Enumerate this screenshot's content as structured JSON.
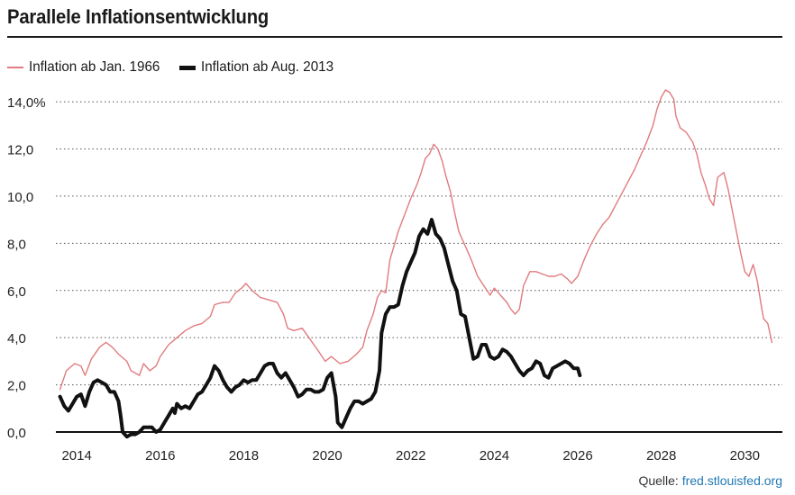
{
  "title": "Parallele Inflationsentwicklung",
  "legend": [
    {
      "label": "Inflation ab Jan. 1966",
      "color": "#e07b7f"
    },
    {
      "label": "Inflation ab Aug. 2013",
      "color": "#111111"
    }
  ],
  "source": {
    "prefix": "Quelle:",
    "link": "fred.stlouisfed.org"
  },
  "chart_data": {
    "type": "line",
    "title": "Parallele Inflationsentwicklung",
    "xlabel": "",
    "ylabel": "",
    "xlim": [
      2013.5,
      2030.9
    ],
    "ylim": [
      0,
      14.5
    ],
    "y_ticks": [
      0,
      2,
      4,
      6,
      8,
      10,
      12,
      14
    ],
    "y_tick_labels": [
      "0,0",
      "2,0",
      "4,0",
      "6,0",
      "8,0",
      "10,0",
      "12,0",
      "14,0%"
    ],
    "x_ticks": [
      2014,
      2016,
      2018,
      2020,
      2022,
      2024,
      2026,
      2028,
      2030
    ],
    "x_tick_labels": [
      "2014",
      "2016",
      "2018",
      "2020",
      "2022",
      "2024",
      "2026",
      "2028",
      "2030"
    ],
    "grid": "horizontal dotted",
    "legend_position": "top-left",
    "series": [
      {
        "name": "Inflation ab Jan. 1966",
        "color": "#e07b7f",
        "points": [
          [
            2013.6,
            1.8
          ],
          [
            2013.75,
            2.6
          ],
          [
            2013.95,
            2.9
          ],
          [
            2014.1,
            2.8
          ],
          [
            2014.2,
            2.4
          ],
          [
            2014.35,
            3.1
          ],
          [
            2014.55,
            3.6
          ],
          [
            2014.7,
            3.8
          ],
          [
            2014.85,
            3.6
          ],
          [
            2015.0,
            3.3
          ],
          [
            2015.2,
            3.0
          ],
          [
            2015.3,
            2.6
          ],
          [
            2015.5,
            2.4
          ],
          [
            2015.6,
            2.9
          ],
          [
            2015.75,
            2.6
          ],
          [
            2015.9,
            2.8
          ],
          [
            2016.0,
            3.2
          ],
          [
            2016.2,
            3.7
          ],
          [
            2016.4,
            4.0
          ],
          [
            2016.6,
            4.3
          ],
          [
            2016.8,
            4.5
          ],
          [
            2017.0,
            4.6
          ],
          [
            2017.2,
            4.9
          ],
          [
            2017.3,
            5.4
          ],
          [
            2017.5,
            5.5
          ],
          [
            2017.65,
            5.5
          ],
          [
            2017.8,
            5.9
          ],
          [
            2017.95,
            6.1
          ],
          [
            2018.05,
            6.3
          ],
          [
            2018.2,
            6.0
          ],
          [
            2018.4,
            5.7
          ],
          [
            2018.6,
            5.6
          ],
          [
            2018.8,
            5.5
          ],
          [
            2018.95,
            5.0
          ],
          [
            2019.05,
            4.4
          ],
          [
            2019.2,
            4.3
          ],
          [
            2019.4,
            4.4
          ],
          [
            2019.6,
            3.9
          ],
          [
            2019.8,
            3.4
          ],
          [
            2019.95,
            3.0
          ],
          [
            2020.1,
            3.2
          ],
          [
            2020.3,
            2.9
          ],
          [
            2020.5,
            3.0
          ],
          [
            2020.7,
            3.3
          ],
          [
            2020.85,
            3.6
          ],
          [
            2020.95,
            4.3
          ],
          [
            2021.1,
            5.0
          ],
          [
            2021.2,
            5.7
          ],
          [
            2021.3,
            6.0
          ],
          [
            2021.4,
            5.9
          ],
          [
            2021.5,
            7.3
          ],
          [
            2021.6,
            7.9
          ],
          [
            2021.7,
            8.5
          ],
          [
            2021.85,
            9.2
          ],
          [
            2022.0,
            9.9
          ],
          [
            2022.15,
            10.5
          ],
          [
            2022.25,
            11.0
          ],
          [
            2022.35,
            11.6
          ],
          [
            2022.45,
            11.8
          ],
          [
            2022.55,
            12.2
          ],
          [
            2022.65,
            12.0
          ],
          [
            2022.75,
            11.5
          ],
          [
            2022.85,
            10.8
          ],
          [
            2022.95,
            10.2
          ],
          [
            2023.05,
            9.3
          ],
          [
            2023.15,
            8.5
          ],
          [
            2023.3,
            7.9
          ],
          [
            2023.45,
            7.3
          ],
          [
            2023.6,
            6.6
          ],
          [
            2023.75,
            6.2
          ],
          [
            2023.9,
            5.8
          ],
          [
            2024.0,
            6.1
          ],
          [
            2024.1,
            5.9
          ],
          [
            2024.2,
            5.7
          ],
          [
            2024.3,
            5.5
          ],
          [
            2024.4,
            5.2
          ],
          [
            2024.5,
            5.0
          ],
          [
            2024.6,
            5.2
          ],
          [
            2024.7,
            6.2
          ],
          [
            2024.85,
            6.8
          ],
          [
            2025.0,
            6.8
          ],
          [
            2025.15,
            6.7
          ],
          [
            2025.3,
            6.6
          ],
          [
            2025.45,
            6.6
          ],
          [
            2025.6,
            6.7
          ],
          [
            2025.75,
            6.5
          ],
          [
            2025.85,
            6.3
          ],
          [
            2026.0,
            6.6
          ],
          [
            2026.15,
            7.3
          ],
          [
            2026.3,
            7.9
          ],
          [
            2026.45,
            8.4
          ],
          [
            2026.6,
            8.8
          ],
          [
            2026.75,
            9.1
          ],
          [
            2026.9,
            9.6
          ],
          [
            2027.05,
            10.1
          ],
          [
            2027.2,
            10.6
          ],
          [
            2027.35,
            11.1
          ],
          [
            2027.5,
            11.7
          ],
          [
            2027.65,
            12.3
          ],
          [
            2027.8,
            13.0
          ],
          [
            2027.9,
            13.7
          ],
          [
            2028.0,
            14.2
          ],
          [
            2028.1,
            14.5
          ],
          [
            2028.2,
            14.4
          ],
          [
            2028.3,
            14.1
          ],
          [
            2028.35,
            13.4
          ],
          [
            2028.45,
            12.9
          ],
          [
            2028.6,
            12.7
          ],
          [
            2028.75,
            12.3
          ],
          [
            2028.85,
            11.8
          ],
          [
            2028.95,
            11.0
          ],
          [
            2029.05,
            10.5
          ],
          [
            2029.15,
            9.9
          ],
          [
            2029.25,
            9.6
          ],
          [
            2029.35,
            10.8
          ],
          [
            2029.5,
            11.0
          ],
          [
            2029.6,
            10.3
          ],
          [
            2029.7,
            9.4
          ],
          [
            2029.8,
            8.5
          ],
          [
            2029.9,
            7.6
          ],
          [
            2030.0,
            6.8
          ],
          [
            2030.1,
            6.6
          ],
          [
            2030.2,
            7.1
          ],
          [
            2030.3,
            6.4
          ],
          [
            2030.4,
            5.3
          ],
          [
            2030.45,
            4.8
          ],
          [
            2030.55,
            4.6
          ],
          [
            2030.65,
            3.8
          ]
        ]
      },
      {
        "name": "Inflation ab Aug. 2013",
        "color": "#111111",
        "points": [
          [
            2013.6,
            1.5
          ],
          [
            2013.7,
            1.1
          ],
          [
            2013.8,
            0.9
          ],
          [
            2013.9,
            1.2
          ],
          [
            2014.0,
            1.5
          ],
          [
            2014.1,
            1.6
          ],
          [
            2014.2,
            1.1
          ],
          [
            2014.3,
            1.7
          ],
          [
            2014.4,
            2.1
          ],
          [
            2014.5,
            2.2
          ],
          [
            2014.6,
            2.1
          ],
          [
            2014.7,
            2.0
          ],
          [
            2014.8,
            1.7
          ],
          [
            2014.9,
            1.7
          ],
          [
            2015.0,
            1.3
          ],
          [
            2015.05,
            0.7
          ],
          [
            2015.1,
            0.0
          ],
          [
            2015.2,
            -0.2
          ],
          [
            2015.3,
            -0.1
          ],
          [
            2015.4,
            -0.1
          ],
          [
            2015.5,
            0.0
          ],
          [
            2015.6,
            0.2
          ],
          [
            2015.7,
            0.2
          ],
          [
            2015.8,
            0.2
          ],
          [
            2015.9,
            0.0
          ],
          [
            2016.0,
            0.1
          ],
          [
            2016.1,
            0.4
          ],
          [
            2016.2,
            0.7
          ],
          [
            2016.3,
            1.0
          ],
          [
            2016.35,
            0.8
          ],
          [
            2016.4,
            1.2
          ],
          [
            2016.5,
            1.0
          ],
          [
            2016.6,
            1.1
          ],
          [
            2016.7,
            1.0
          ],
          [
            2016.8,
            1.3
          ],
          [
            2016.9,
            1.6
          ],
          [
            2017.0,
            1.7
          ],
          [
            2017.1,
            2.0
          ],
          [
            2017.2,
            2.3
          ],
          [
            2017.3,
            2.8
          ],
          [
            2017.4,
            2.6
          ],
          [
            2017.5,
            2.2
          ],
          [
            2017.6,
            1.9
          ],
          [
            2017.7,
            1.7
          ],
          [
            2017.8,
            1.9
          ],
          [
            2017.9,
            2.0
          ],
          [
            2018.0,
            2.2
          ],
          [
            2018.1,
            2.1
          ],
          [
            2018.2,
            2.2
          ],
          [
            2018.3,
            2.2
          ],
          [
            2018.4,
            2.5
          ],
          [
            2018.5,
            2.8
          ],
          [
            2018.6,
            2.9
          ],
          [
            2018.7,
            2.9
          ],
          [
            2018.8,
            2.5
          ],
          [
            2018.9,
            2.3
          ],
          [
            2019.0,
            2.5
          ],
          [
            2019.1,
            2.2
          ],
          [
            2019.2,
            1.9
          ],
          [
            2019.3,
            1.5
          ],
          [
            2019.4,
            1.6
          ],
          [
            2019.5,
            1.8
          ],
          [
            2019.6,
            1.8
          ],
          [
            2019.7,
            1.7
          ],
          [
            2019.8,
            1.7
          ],
          [
            2019.9,
            1.8
          ],
          [
            2020.0,
            2.3
          ],
          [
            2020.1,
            2.5
          ],
          [
            2020.2,
            1.5
          ],
          [
            2020.25,
            0.4
          ],
          [
            2020.35,
            0.2
          ],
          [
            2020.45,
            0.6
          ],
          [
            2020.55,
            1.0
          ],
          [
            2020.65,
            1.3
          ],
          [
            2020.75,
            1.3
          ],
          [
            2020.85,
            1.2
          ],
          [
            2020.95,
            1.3
          ],
          [
            2021.05,
            1.4
          ],
          [
            2021.15,
            1.7
          ],
          [
            2021.25,
            2.6
          ],
          [
            2021.3,
            4.2
          ],
          [
            2021.4,
            5.0
          ],
          [
            2021.5,
            5.3
          ],
          [
            2021.6,
            5.3
          ],
          [
            2021.7,
            5.4
          ],
          [
            2021.8,
            6.2
          ],
          [
            2021.9,
            6.8
          ],
          [
            2022.0,
            7.2
          ],
          [
            2022.1,
            7.6
          ],
          [
            2022.2,
            8.3
          ],
          [
            2022.3,
            8.6
          ],
          [
            2022.4,
            8.4
          ],
          [
            2022.5,
            9.0
          ],
          [
            2022.6,
            8.4
          ],
          [
            2022.7,
            8.2
          ],
          [
            2022.8,
            7.8
          ],
          [
            2022.9,
            7.1
          ],
          [
            2023.0,
            6.4
          ],
          [
            2023.1,
            6.0
          ],
          [
            2023.2,
            5.0
          ],
          [
            2023.3,
            4.9
          ],
          [
            2023.4,
            4.0
          ],
          [
            2023.5,
            3.1
          ],
          [
            2023.6,
            3.2
          ],
          [
            2023.7,
            3.7
          ],
          [
            2023.8,
            3.7
          ],
          [
            2023.9,
            3.2
          ],
          [
            2024.0,
            3.1
          ],
          [
            2024.1,
            3.2
          ],
          [
            2024.2,
            3.5
          ],
          [
            2024.3,
            3.4
          ],
          [
            2024.4,
            3.2
          ],
          [
            2024.5,
            2.9
          ],
          [
            2024.6,
            2.6
          ],
          [
            2024.7,
            2.4
          ],
          [
            2024.8,
            2.6
          ],
          [
            2024.9,
            2.7
          ],
          [
            2025.0,
            3.0
          ],
          [
            2025.1,
            2.9
          ],
          [
            2025.2,
            2.4
          ],
          [
            2025.3,
            2.3
          ],
          [
            2025.4,
            2.7
          ],
          [
            2025.5,
            2.8
          ],
          [
            2025.6,
            2.9
          ],
          [
            2025.7,
            3.0
          ],
          [
            2025.8,
            2.9
          ],
          [
            2025.9,
            2.7
          ],
          [
            2026.0,
            2.7
          ],
          [
            2026.05,
            2.4
          ]
        ]
      }
    ]
  }
}
